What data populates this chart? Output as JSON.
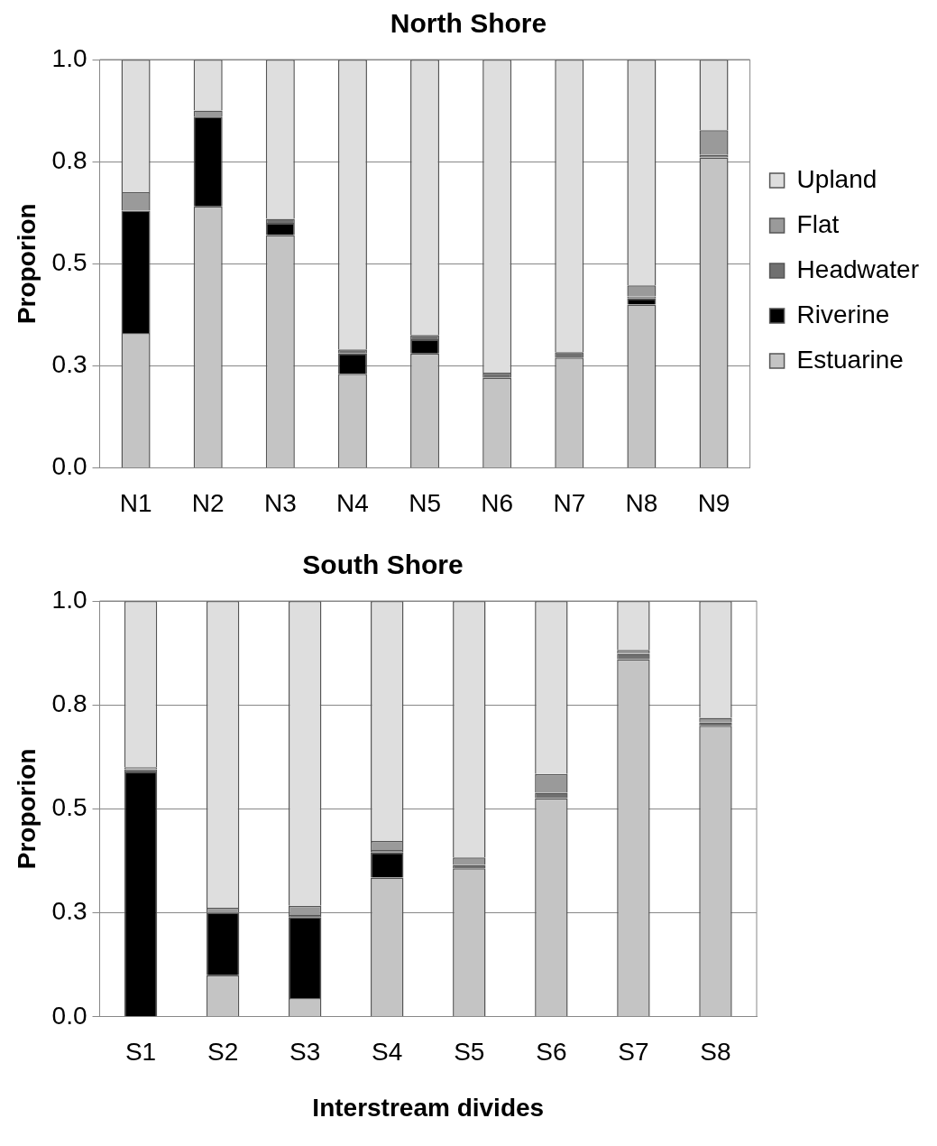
{
  "chart_data": [
    {
      "type": "bar",
      "title": "North Shore",
      "ylabel": "Proporion",
      "stacked": true,
      "grid": "y",
      "legend": "right",
      "categories": [
        "N1",
        "N2",
        "N3",
        "N4",
        "N5",
        "N6",
        "N7",
        "N8",
        "N9"
      ],
      "ylim": [
        0,
        1
      ],
      "yticks": [
        {
          "value": 0,
          "label": "0.0"
        },
        {
          "value": 0.25,
          "label": "0.3"
        },
        {
          "value": 0.5,
          "label": "0.5"
        },
        {
          "value": 0.75,
          "label": "0.8"
        },
        {
          "value": 1,
          "label": "1.0"
        }
      ],
      "series": [
        {
          "name": "Estuarine",
          "color": "#c4c4c4",
          "values": [
            0.33,
            0.64,
            0.57,
            0.23,
            0.28,
            0.22,
            0.27,
            0.4,
            0.76
          ]
        },
        {
          "name": "Riverine",
          "color": "#000000",
          "values": [
            0.3,
            0.22,
            0.03,
            0.05,
            0.035,
            0,
            0,
            0.015,
            0
          ]
        },
        {
          "name": "Headwater",
          "color": "#707070",
          "values": [
            0,
            0,
            0.01,
            0.01,
            0.01,
            0.013,
            0.013,
            0.005,
            0.006
          ]
        },
        {
          "name": "Flat",
          "color": "#9a9a9a",
          "values": [
            0.045,
            0.015,
            0,
            0,
            0,
            0,
            0,
            0.027,
            0.061
          ]
        },
        {
          "name": "Upland",
          "color": "#dedede",
          "values": [
            0.325,
            0.125,
            0.39,
            0.71,
            0.675,
            0.767,
            0.717,
            0.553,
            0.173
          ]
        }
      ]
    },
    {
      "type": "bar",
      "title": "South Shore",
      "ylabel": "Proporion",
      "xlabel": "Interstream divides",
      "stacked": true,
      "grid": "y",
      "categories": [
        "S1",
        "S2",
        "S3",
        "S4",
        "S5",
        "S6",
        "S7",
        "S8"
      ],
      "ylim": [
        0,
        1
      ],
      "yticks": [
        {
          "value": 0,
          "label": "0.0"
        },
        {
          "value": 0.25,
          "label": "0.3"
        },
        {
          "value": 0.5,
          "label": "0.5"
        },
        {
          "value": 0.75,
          "label": "0.8"
        },
        {
          "value": 1,
          "label": "1.0"
        }
      ],
      "series": [
        {
          "color": "#c4c4c4",
          "values": [
            0,
            0.1,
            0.045,
            0.335,
            0.357,
            0.526,
            0.86,
            0.7
          ]
        },
        {
          "color": "#000000",
          "values": [
            0.59,
            0.15,
            0.195,
            0.06,
            0,
            0,
            0,
            0
          ]
        },
        {
          "color": "#707070",
          "values": [
            0.005,
            0,
            0.005,
            0.006,
            0.008,
            0.013,
            0.013,
            0.008
          ]
        },
        {
          "color": "#9a9a9a",
          "values": [
            0.005,
            0.012,
            0.022,
            0.022,
            0.018,
            0.045,
            0.009,
            0.011
          ]
        },
        {
          "color": "#dedede",
          "values": [
            0.4,
            0.738,
            0.733,
            0.577,
            0.617,
            0.416,
            0.118,
            0.281
          ]
        }
      ]
    }
  ]
}
